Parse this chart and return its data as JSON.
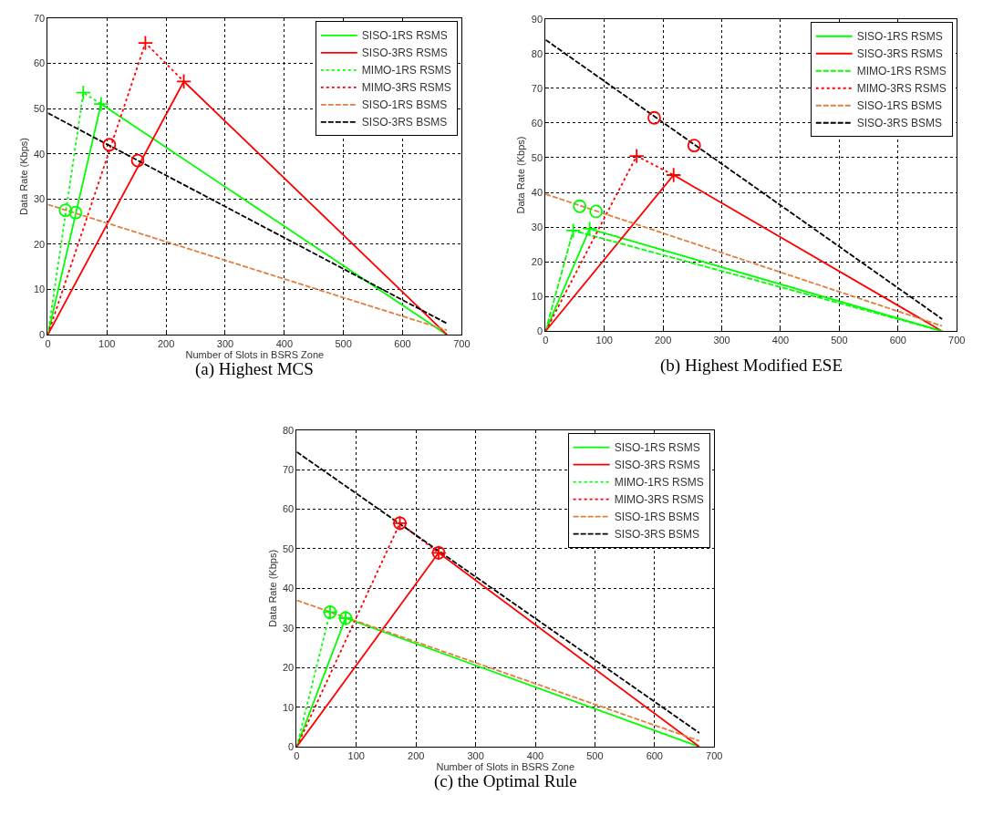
{
  "chart_data": [
    {
      "type": "line",
      "title": "(a) Highest MCS",
      "xlabel": "Number of Slots in BSRS Zone",
      "ylabel": "Data Rate (Kbps)",
      "xlim": [
        0,
        700
      ],
      "xticks": [
        0,
        100,
        200,
        300,
        400,
        500,
        600,
        700
      ],
      "ylim": [
        0,
        70
      ],
      "yticks": [
        0,
        10,
        20,
        30,
        40,
        50,
        60,
        70
      ],
      "grid": true,
      "legend": "top right",
      "series": [
        {
          "name": "SISO-1RS RSMS",
          "color": "#00ff00",
          "line_style": "solid",
          "x": [
            0,
            90,
            675
          ],
          "values": [
            0,
            51,
            0
          ]
        },
        {
          "name": "SISO-3RS RSMS",
          "color": "#ff0000",
          "line_style": "solid",
          "x": [
            0,
            230,
            675
          ],
          "values": [
            0,
            56,
            0
          ]
        },
        {
          "name": "MIMO-1RS RSMS",
          "color": "#00ff00",
          "line_style": "dotted",
          "x": [
            0,
            60,
            90
          ],
          "values": [
            0,
            53.5,
            51
          ]
        },
        {
          "name": "MIMO-3RS RSMS",
          "color": "#ff0000",
          "line_style": "dotted",
          "x": [
            0,
            165,
            230
          ],
          "values": [
            0,
            64.5,
            56
          ]
        },
        {
          "name": "SISO-1RS BSMS",
          "color": "#e08040",
          "line_style": "dashed",
          "x": [
            0,
            675
          ],
          "values": [
            28.8,
            1
          ]
        },
        {
          "name": "SISO-3RS BSMS",
          "color": "#000000",
          "line_style": "dashed",
          "x": [
            0,
            675
          ],
          "values": [
            49,
            2.5
          ]
        },
        {
          "type": "scatter",
          "marker": "cross",
          "color": "#00ff00",
          "x": [
            60,
            90
          ],
          "values": [
            53.5,
            51
          ]
        },
        {
          "type": "scatter",
          "marker": "cross",
          "color": "#ff0000",
          "x": [
            165,
            230
          ],
          "values": [
            64.5,
            56
          ]
        },
        {
          "type": "scatter",
          "marker": "circle",
          "color": "#00ff00",
          "x": [
            30,
            47
          ],
          "values": [
            27.5,
            27
          ]
        },
        {
          "type": "scatter",
          "marker": "circle",
          "color": "#ff0000",
          "x": [
            104,
            152
          ],
          "values": [
            42,
            38.5
          ]
        }
      ]
    },
    {
      "type": "line",
      "title": "(b) Highest Modified ESE",
      "ylabel": "Data Rate (Kbps)",
      "xlim": [
        0,
        700
      ],
      "xticks": [
        0,
        100,
        200,
        300,
        400,
        500,
        600,
        700
      ],
      "ylim": [
        0,
        90
      ],
      "yticks": [
        0,
        10,
        20,
        30,
        40,
        50,
        60,
        70,
        80,
        90
      ],
      "grid": true,
      "legend": "top right",
      "series": [
        {
          "name": "SISO-1RS RSMS",
          "color": "#00ff00",
          "line_style": "solid",
          "x": [
            0,
            75,
            675
          ],
          "values": [
            0,
            29.5,
            0
          ]
        },
        {
          "name": "SISO-3RS RSMS",
          "color": "#ff0000",
          "line_style": "solid",
          "x": [
            0,
            218,
            675
          ],
          "values": [
            0,
            45,
            0
          ]
        },
        {
          "name": "MIMO-1RS RSMS",
          "color": "#00ff00",
          "line_style": "dashed",
          "x": [
            0,
            47,
            675
          ],
          "values": [
            0,
            29,
            0
          ]
        },
        {
          "name": "MIMO-3RS RSMS",
          "color": "#ff0000",
          "line_style": "dotted",
          "x": [
            0,
            155,
            218
          ],
          "values": [
            0,
            50.5,
            45
          ]
        },
        {
          "name": "SISO-1RS BSMS",
          "color": "#e08040",
          "line_style": "dashed",
          "x": [
            0,
            675
          ],
          "values": [
            39.5,
            1.5
          ]
        },
        {
          "name": "SISO-3RS BSMS",
          "color": "#000000",
          "line_style": "dashed",
          "x": [
            0,
            675
          ],
          "values": [
            84,
            3.5
          ]
        },
        {
          "type": "scatter",
          "marker": "cross",
          "color": "#00ff00",
          "x": [
            47,
            75
          ],
          "values": [
            29,
            29.5
          ]
        },
        {
          "type": "scatter",
          "marker": "cross",
          "color": "#ff0000",
          "x": [
            155,
            218
          ],
          "values": [
            50.5,
            45
          ]
        },
        {
          "type": "scatter",
          "marker": "circle",
          "color": "#00ff00",
          "x": [
            58,
            86
          ],
          "values": [
            36,
            34.5
          ]
        },
        {
          "type": "scatter",
          "marker": "circle",
          "color": "#ff0000",
          "x": [
            185,
            253
          ],
          "values": [
            61.5,
            53.5
          ]
        }
      ]
    },
    {
      "type": "line",
      "title": "(c) the Optimal Rule",
      "xlabel": "Number of Slots in BSRS Zone",
      "ylabel": "Data Rate (Kbps)",
      "xlim": [
        0,
        700
      ],
      "xticks": [
        0,
        100,
        200,
        300,
        400,
        500,
        600,
        700
      ],
      "ylim": [
        0,
        80
      ],
      "yticks": [
        0,
        10,
        20,
        30,
        40,
        50,
        60,
        70,
        80
      ],
      "grid": true,
      "legend": "top right",
      "series": [
        {
          "name": "SISO-1RS RSMS",
          "color": "#00ff00",
          "line_style": "solid",
          "x": [
            0,
            82,
            675
          ],
          "values": [
            0,
            32.5,
            0
          ]
        },
        {
          "name": "SISO-3RS RSMS",
          "color": "#ff0000",
          "line_style": "solid",
          "x": [
            0,
            238,
            675
          ],
          "values": [
            0,
            49,
            0
          ]
        },
        {
          "name": "MIMO-1RS RSMS",
          "color": "#00ff00",
          "line_style": "dotted",
          "x": [
            0,
            56,
            82
          ],
          "values": [
            0,
            34,
            32.5
          ]
        },
        {
          "name": "MIMO-3RS RSMS",
          "color": "#ff0000",
          "line_style": "dotted",
          "x": [
            0,
            173,
            238
          ],
          "values": [
            0,
            56.5,
            49
          ]
        },
        {
          "name": "SISO-1RS BSMS",
          "color": "#e08040",
          "line_style": "dashed",
          "x": [
            0,
            675
          ],
          "values": [
            37,
            1.5
          ]
        },
        {
          "name": "SISO-3RS BSMS",
          "color": "#000000",
          "line_style": "dashed",
          "x": [
            0,
            675
          ],
          "values": [
            74.5,
            3.5
          ]
        },
        {
          "type": "scatter",
          "marker": "cross",
          "color": "#00ff00",
          "x": [
            56,
            82
          ],
          "values": [
            34,
            32.5
          ]
        },
        {
          "type": "scatter",
          "marker": "circle",
          "color": "#00ff00",
          "x": [
            56,
            82
          ],
          "values": [
            34,
            32.5
          ]
        },
        {
          "type": "scatter",
          "marker": "circle",
          "color": "#ff0000",
          "x": [
            173,
            238
          ],
          "values": [
            56.5,
            49
          ]
        },
        {
          "type": "scatter",
          "marker": "cross",
          "color": "#ff0000",
          "x": [
            173,
            238
          ],
          "values": [
            56.5,
            49
          ]
        }
      ]
    }
  ]
}
